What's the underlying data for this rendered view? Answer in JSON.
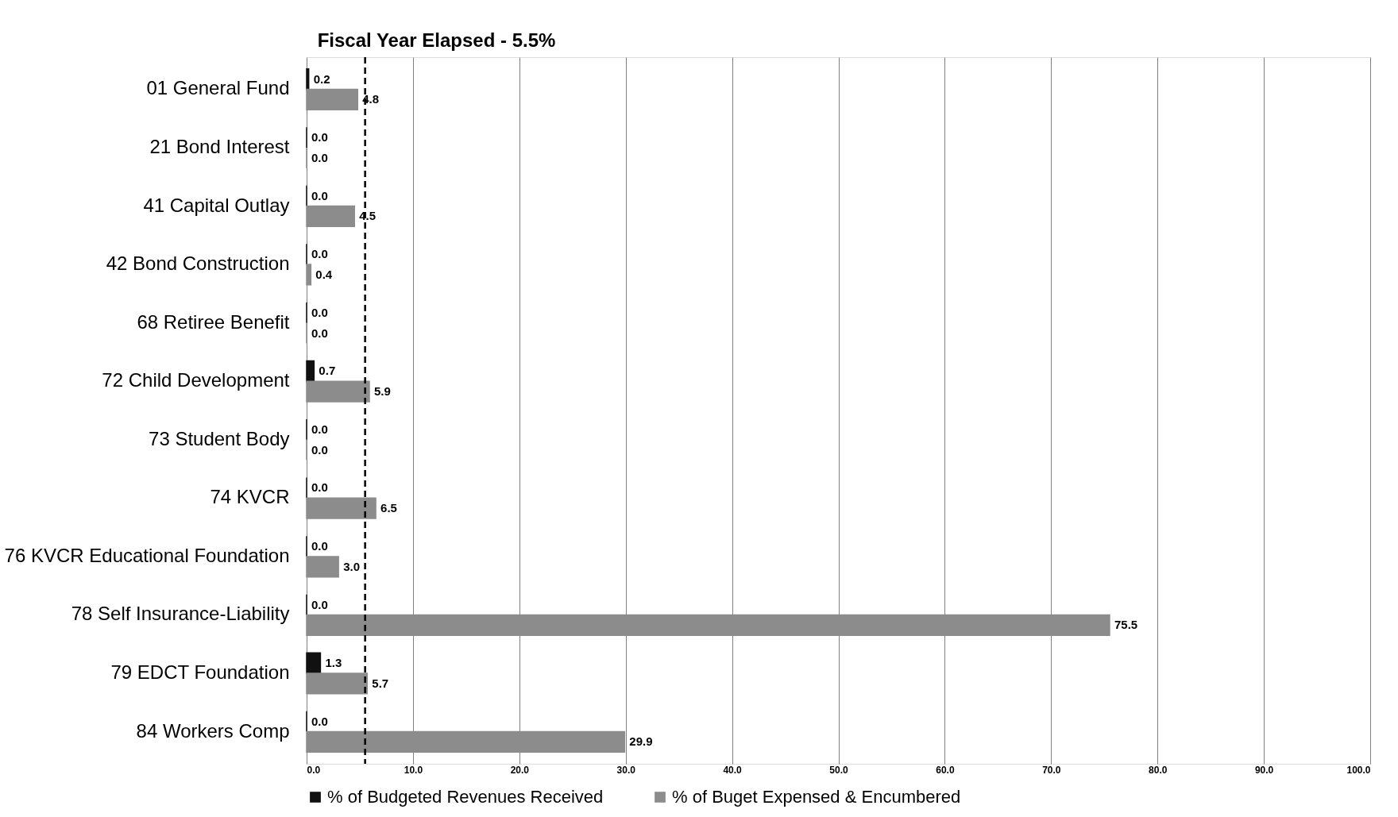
{
  "chart_data": {
    "type": "bar",
    "orientation": "horizontal",
    "categories": [
      "01 General Fund",
      "21 Bond Interest",
      "41 Capital Outlay",
      "42 Bond Construction",
      "68 Retiree Benefit",
      "72 Child Development",
      "73 Student Body",
      "74 KVCR",
      "76 KVCR Educational Foundation",
      "78 Self Insurance-Liability",
      "79 EDCT Foundation",
      "84 Workers Comp"
    ],
    "series": [
      {
        "name": "% of Budgeted Revenues Received",
        "color": "#111111",
        "values": [
          0.2,
          0,
          0,
          0,
          0,
          0.7,
          0,
          0,
          0,
          0,
          1.3,
          0
        ],
        "value_labels": [
          "0.2",
          "0.0",
          "0.0",
          "0.0",
          "0.0",
          "0.7",
          "0.0",
          "0.0",
          "0.0",
          "0.0",
          "1.3",
          "0.0"
        ]
      },
      {
        "name": "% of Buget Expensed & Encumbered",
        "color": "#8c8c8c",
        "values": [
          4.8,
          0,
          4.5,
          0.4,
          0,
          5.9,
          0,
          6.5,
          3.0,
          75.5,
          5.7,
          29.9
        ],
        "value_labels": [
          "4.8",
          "0.0",
          "4.5",
          "0.4",
          "0.0",
          "5.9",
          "0.0",
          "6.5",
          "3.0",
          "75.5",
          "5.7",
          "29.9"
        ]
      }
    ],
    "xlim": [
      0,
      100
    ],
    "xticks": [
      {
        "value": 0,
        "label": "0.0"
      },
      {
        "value": 10,
        "label": "10.0"
      },
      {
        "value": 20,
        "label": "20.0"
      },
      {
        "value": 30,
        "label": "30.0"
      },
      {
        "value": 40,
        "label": "40.0"
      },
      {
        "value": 50,
        "label": "50.0"
      },
      {
        "value": 60,
        "label": "60.0"
      },
      {
        "value": 70,
        "label": "70.0"
      },
      {
        "value": 80,
        "label": "80.0"
      },
      {
        "value": 90,
        "label": "90.0"
      },
      {
        "value": 100,
        "label": "100.0"
      }
    ],
    "ref_lines": [
      {
        "axis": "x",
        "value": 5.5,
        "label": "Fiscal Year Elapsed - 5.5%",
        "line_style": "dashed",
        "color": "#000000"
      }
    ],
    "grid": "x",
    "legend": "bottom"
  }
}
